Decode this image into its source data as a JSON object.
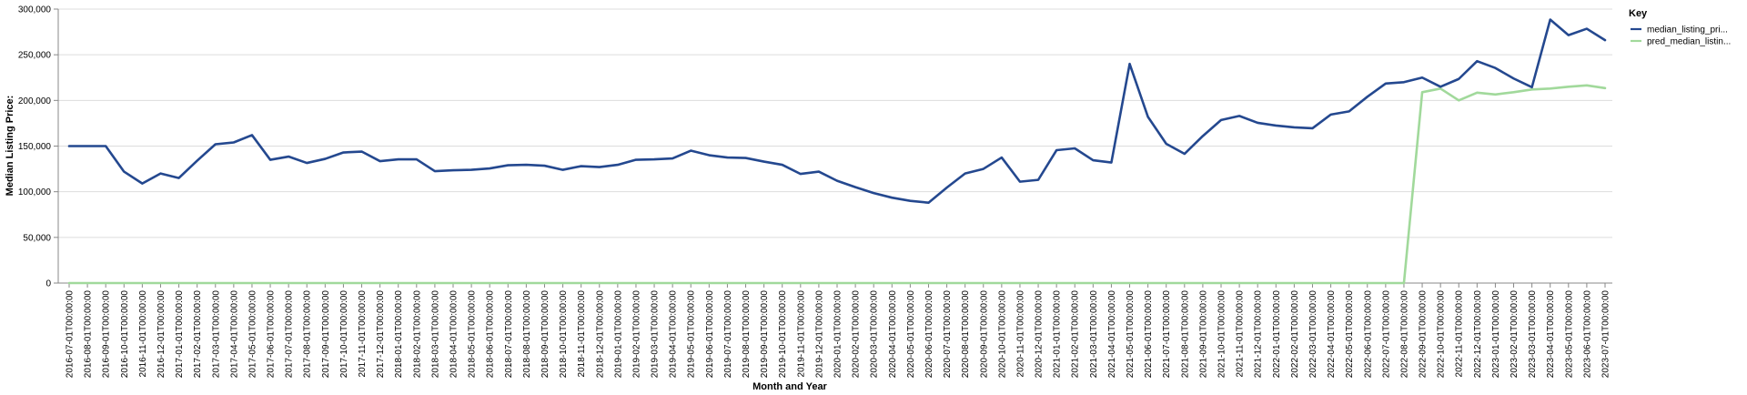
{
  "chart_data": {
    "type": "line",
    "xlabel": "Month and Year",
    "ylabel": "Median Listing Price:",
    "ylim": [
      0,
      300000
    ],
    "yticks": [
      "0",
      "50,000",
      "100,000",
      "150,000",
      "200,000",
      "250,000",
      "300,000"
    ],
    "grid": "horizontal",
    "legend": {
      "title": "Key",
      "placement": "top-right",
      "entries": [
        "median_listing_pri...",
        "pred_median_listin..."
      ]
    },
    "x": [
      "2016-07-01T00:00:00",
      "2016-08-01T00:00:00",
      "2016-09-01T00:00:00",
      "2016-10-01T00:00:00",
      "2016-11-01T00:00:00",
      "2016-12-01T00:00:00",
      "2017-01-01T00:00:00",
      "2017-02-01T00:00:00",
      "2017-03-01T00:00:00",
      "2017-04-01T00:00:00",
      "2017-05-01T00:00:00",
      "2017-06-01T00:00:00",
      "2017-07-01T00:00:00",
      "2017-08-01T00:00:00",
      "2017-09-01T00:00:00",
      "2017-10-01T00:00:00",
      "2017-11-01T00:00:00",
      "2017-12-01T00:00:00",
      "2018-01-01T00:00:00",
      "2018-02-01T00:00:00",
      "2018-03-01T00:00:00",
      "2018-04-01T00:00:00",
      "2018-05-01T00:00:00",
      "2018-06-01T00:00:00",
      "2018-07-01T00:00:00",
      "2018-08-01T00:00:00",
      "2018-09-01T00:00:00",
      "2018-10-01T00:00:00",
      "2018-11-01T00:00:00",
      "2018-12-01T00:00:00",
      "2019-01-01T00:00:00",
      "2019-02-01T00:00:00",
      "2019-03-01T00:00:00",
      "2019-04-01T00:00:00",
      "2019-05-01T00:00:00",
      "2019-06-01T00:00:00",
      "2019-07-01T00:00:00",
      "2019-08-01T00:00:00",
      "2019-09-01T00:00:00",
      "2019-10-01T00:00:00",
      "2019-11-01T00:00:00",
      "2019-12-01T00:00:00",
      "2020-01-01T00:00:00",
      "2020-02-01T00:00:00",
      "2020-03-01T00:00:00",
      "2020-04-01T00:00:00",
      "2020-05-01T00:00:00",
      "2020-06-01T00:00:00",
      "2020-07-01T00:00:00",
      "2020-08-01T00:00:00",
      "2020-09-01T00:00:00",
      "2020-10-01T00:00:00",
      "2020-11-01T00:00:00",
      "2020-12-01T00:00:00",
      "2021-01-01T00:00:00",
      "2021-02-01T00:00:00",
      "2021-03-01T00:00:00",
      "2021-04-01T00:00:00",
      "2021-05-01T00:00:00",
      "2021-06-01T00:00:00",
      "2021-07-01T00:00:00",
      "2021-08-01T00:00:00",
      "2021-09-01T00:00:00",
      "2021-10-01T00:00:00",
      "2021-11-01T00:00:00",
      "2021-12-01T00:00:00",
      "2022-01-01T00:00:00",
      "2022-02-01T00:00:00",
      "2022-03-01T00:00:00",
      "2022-04-01T00:00:00",
      "2022-05-01T00:00:00",
      "2022-06-01T00:00:00",
      "2022-07-01T00:00:00",
      "2022-08-01T00:00:00",
      "2022-09-01T00:00:00",
      "2022-10-01T00:00:00",
      "2022-11-01T00:00:00",
      "2022-12-01T00:00:00",
      "2023-01-01T00:00:00",
      "2023-02-01T00:00:00",
      "2023-03-01T00:00:00",
      "2023-04-01T00:00:00",
      "2023-05-01T00:00:00",
      "2023-06-01T00:00:00",
      "2023-07-01T00:00:00"
    ],
    "series": [
      {
        "name": "median_listing_pri...",
        "color": "#24488f",
        "values": [
          150000,
          150000,
          150000,
          122000,
          109000,
          120000,
          115000,
          134000,
          152000,
          154000,
          162000,
          135000,
          138500,
          131500,
          136000,
          143000,
          144000,
          133500,
          135500,
          135500,
          122500,
          123500,
          124000,
          125500,
          129000,
          129500,
          128500,
          124000,
          128000,
          127000,
          129500,
          135000,
          135500,
          136500,
          145000,
          140000,
          137500,
          137000,
          133000,
          129500,
          119500,
          122000,
          112000,
          105000,
          98500,
          93500,
          90000,
          88000,
          104500,
          120000,
          125000,
          137500,
          111000,
          113000,
          145500,
          147500,
          134500,
          132000,
          240000,
          182000,
          152500,
          141500,
          161000,
          178500,
          183000,
          175500,
          172500,
          170500,
          169500,
          184500,
          188000,
          204000,
          218500,
          220000,
          225000,
          215000,
          223500,
          243000,
          235500,
          224000,
          214500,
          288500,
          271500,
          278500,
          266000
        ]
      },
      {
        "name": "pred_median_listin...",
        "color": "#a1d99b",
        "values": [
          0,
          0,
          0,
          0,
          0,
          0,
          0,
          0,
          0,
          0,
          0,
          0,
          0,
          0,
          0,
          0,
          0,
          0,
          0,
          0,
          0,
          0,
          0,
          0,
          0,
          0,
          0,
          0,
          0,
          0,
          0,
          0,
          0,
          0,
          0,
          0,
          0,
          0,
          0,
          0,
          0,
          0,
          0,
          0,
          0,
          0,
          0,
          0,
          0,
          0,
          0,
          0,
          0,
          0,
          0,
          0,
          0,
          0,
          0,
          0,
          0,
          0,
          0,
          0,
          0,
          0,
          0,
          0,
          0,
          0,
          0,
          0,
          0,
          0,
          209000,
          213000,
          200000,
          208500,
          206500,
          209000,
          212000,
          213000,
          215000,
          216500,
          213500
        ]
      }
    ]
  }
}
